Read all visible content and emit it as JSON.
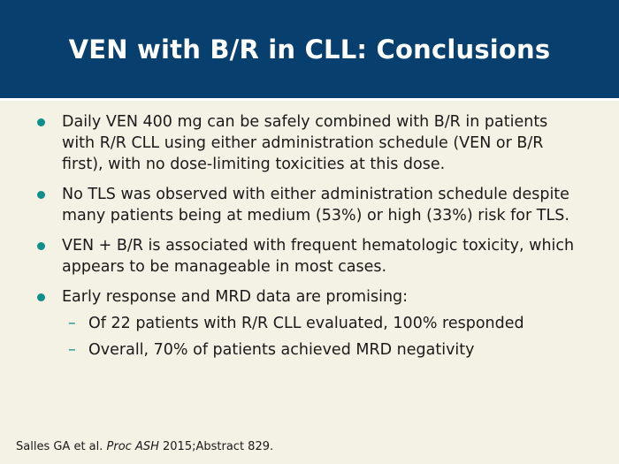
{
  "slide": {
    "title": "VEN with B/R in CLL: Conclusions",
    "bullets": [
      "Daily VEN 400 mg can be safely combined with B/R in patients with R/R CLL using either administration schedule (VEN or B/R first), with no dose-limiting toxicities at this dose.",
      "No TLS was observed with either administration schedule despite many patients being at medium (53%) or high (33%) risk for TLS.",
      "VEN + B/R is associated with frequent hematologic toxicity, which appears to be manageable in most cases.",
      "Early response and MRD data are promising:"
    ],
    "sub_bullets": [
      "Of 22 patients with R/R CLL evaluated, 100% responded",
      "Overall, 70% of patients achieved MRD negativity"
    ],
    "citation": {
      "authors": "Salles GA et al.",
      "journal": "Proc ASH",
      "details": "2015;Abstract 829."
    }
  },
  "colors": {
    "header_bg": "#073f6e",
    "slide_bg": "#f4f2e4",
    "bullet_accent": "#0f8f8a"
  }
}
